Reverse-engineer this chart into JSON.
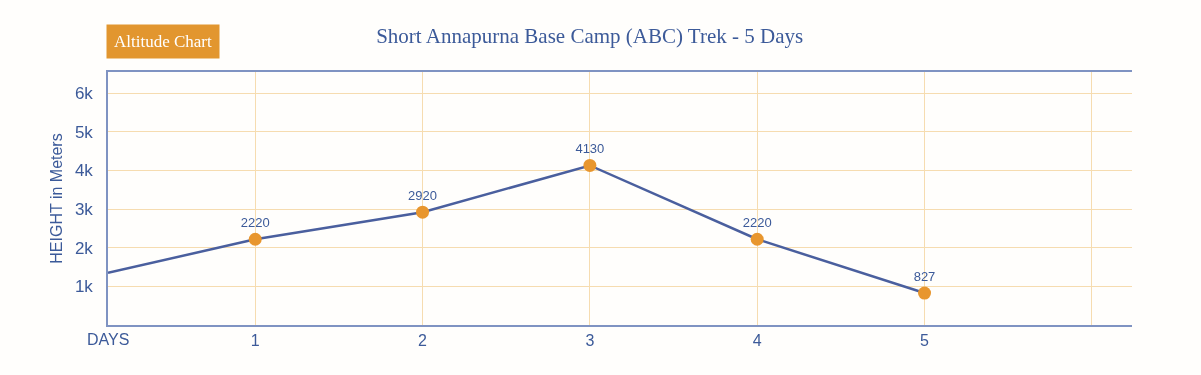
{
  "chart_data": {
    "type": "line",
    "title": "Short Annapurna Base Camp (ABC) Trek - 5 Days",
    "subtitle": "Altitude Chart",
    "xlabel": "DAYS",
    "ylabel": "HEIGHT in Meters",
    "series": [
      {
        "color": "#4a5f9e",
        "x": [
          0.12,
          1
        ],
        "values": [
          1350,
          2220
        ],
        "marker": "none"
      },
      {
        "color": "#4a5f9e",
        "colors": [
          "#e8962e",
          "#e8962e",
          "#e8962e",
          "#e8962e",
          "#e8962e"
        ],
        "x": [
          1,
          2,
          3,
          4,
          5
        ],
        "values": [
          2220,
          2920,
          4130,
          2220,
          827
        ],
        "marker": "circle",
        "value_labels": [
          "2220",
          "2920",
          "4130",
          "2220",
          "827"
        ]
      }
    ],
    "xlim": [
      0.12,
      6.24
    ],
    "xticks": [
      1,
      2,
      3,
      4,
      5,
      {
        "value": 6,
        "label": null
      }
    ],
    "ylim": [
      0,
      6550
    ],
    "yticks": [
      {
        "value": 1000,
        "label": "1k"
      },
      {
        "value": 2000,
        "label": "2k"
      },
      {
        "value": 3000,
        "label": "3k"
      },
      {
        "value": 4000,
        "label": "4k"
      },
      {
        "value": 5000,
        "label": "5k"
      },
      {
        "value": 6000,
        "label": "6k"
      }
    ],
    "grid": true,
    "line_style": "solid"
  }
}
